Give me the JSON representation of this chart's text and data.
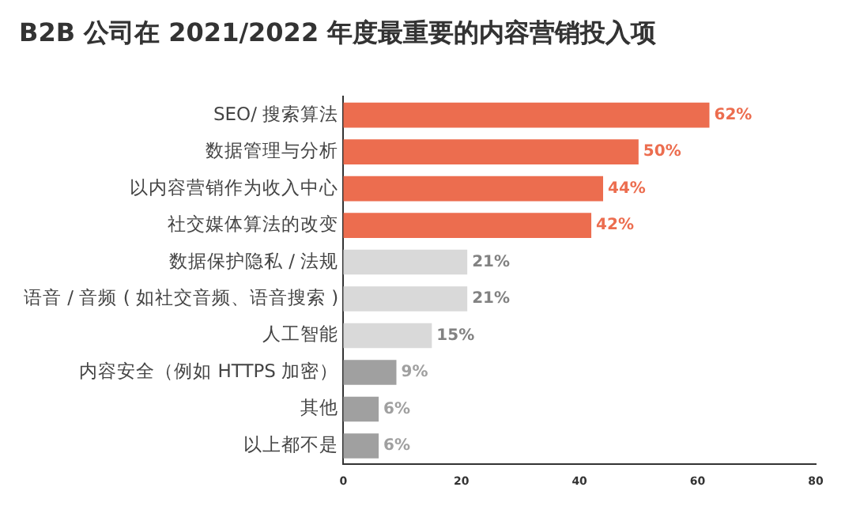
{
  "chart_data": {
    "type": "bar",
    "orientation": "horizontal",
    "title": "B2B 公司在 2021/2022 年度最重要的内容营销投入项",
    "categories": [
      "SEO/ 搜索算法",
      "数据管理与分析",
      "以内容营销作为收入中心",
      "社交媒体算法的改变",
      "数据保护隐私 / 法规",
      "语音 / 音频 ( 如社交音频、语音搜索 )",
      "人工智能",
      "内容安全（例如 HTTPS 加密）",
      "其他",
      "以上都不是"
    ],
    "values": [
      62,
      50,
      44,
      42,
      21,
      21,
      15,
      9,
      6,
      6
    ],
    "colors": [
      "#ec6d4f",
      "#ec6d4f",
      "#ec6d4f",
      "#ec6d4f",
      "#d9d9d9",
      "#d9d9d9",
      "#d9d9d9",
      "#a0a0a0",
      "#a0a0a0",
      "#a0a0a0"
    ],
    "value_labels": [
      "62%",
      "50%",
      "44%",
      "42%",
      "21%",
      "21%",
      "15%",
      "9%",
      "6%",
      "6%"
    ],
    "xlim": [
      0,
      80
    ],
    "xticks": [
      0,
      20,
      40,
      60,
      80
    ],
    "grid": false,
    "legend": false
  }
}
